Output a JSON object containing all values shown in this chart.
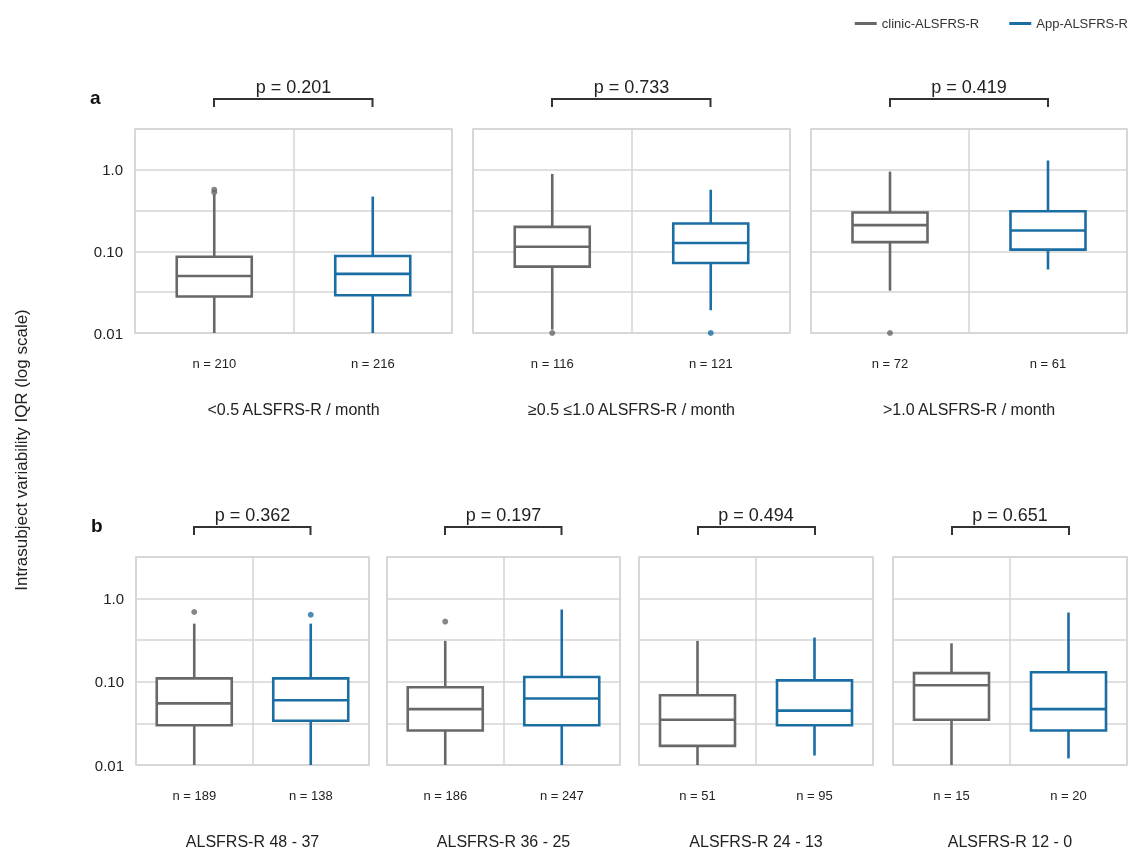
{
  "chart_data": [
    {
      "type": "box",
      "xlabel": "<0.5 ALSFRS-R / month",
      "ylabel": "Intrasubject variability IQR (log scale)",
      "categories": [
        "n = 210",
        "n = 216"
      ],
      "series": [
        {
          "color": "#686868",
          "boxes": [
            {
              "low": 0.01,
              "q1": 0.028,
              "median": 0.05,
              "q3": 0.086,
              "high": 0.5,
              "outliers": [
                0.53,
                0.57
              ]
            },
            null
          ]
        },
        {
          "color": "#1a6ea3",
          "boxes": [
            null,
            {
              "low": 0.01,
              "q1": 0.029,
              "median": 0.053,
              "q3": 0.088,
              "high": 0.47
            }
          ]
        }
      ],
      "ylim": [
        0.01,
        3.162
      ],
      "yticks": [
        {
          "value": 0.01,
          "label": "0.01"
        },
        {
          "value": 0.03162,
          "label": null
        },
        {
          "value": 0.1,
          "label": "0.10"
        },
        {
          "value": 0.3162,
          "label": null
        },
        {
          "value": 1,
          "label": "1.0"
        },
        {
          "value": 3.162,
          "label": null
        }
      ],
      "log": true,
      "grid": true,
      "annotations": [
        "p = 0.201",
        "a"
      ]
    },
    {
      "type": "box",
      "xlabel": "≥0.5 ≤1.0 ALSFRS-R / month",
      "categories": [
        "n = 116",
        "n = 121"
      ],
      "series": [
        {
          "color": "#686868",
          "boxes": [
            {
              "low": 0.011,
              "q1": 0.065,
              "median": 0.114,
              "q3": 0.2,
              "high": 0.89,
              "outliers": [
                0.01
              ]
            },
            null
          ]
        },
        {
          "color": "#1a6ea3",
          "boxes": [
            null,
            {
              "low": 0.019,
              "q1": 0.072,
              "median": 0.127,
              "q3": 0.22,
              "high": 0.57,
              "outliers": [
                0.01
              ]
            }
          ]
        }
      ],
      "ylim": [
        0.01,
        3.162
      ],
      "yticks": [
        0.01,
        0.03162,
        0.1,
        0.3162,
        1,
        3.162
      ],
      "log": true,
      "grid": true,
      "tick_labels": "x",
      "annotations": [
        "p = 0.733"
      ]
    },
    {
      "type": "box",
      "xlabel": ">1.0 ALSFRS-R / month",
      "categories": [
        "n = 72",
        "n = 61"
      ],
      "legend": "top right",
      "series": [
        {
          "name": "clinic-ALSFRS-R",
          "color": "#686868",
          "boxes": [
            {
              "low": 0.033,
              "q1": 0.13,
              "median": 0.21,
              "q3": 0.3,
              "high": 0.95,
              "outliers": [
                0.01
              ]
            },
            null
          ]
        },
        {
          "name": "App-ALSFRS-R",
          "color": "#1a6ea3",
          "boxes": [
            null,
            {
              "low": 0.06,
              "q1": 0.105,
              "median": 0.18,
              "q3": 0.31,
              "high": 1.3
            }
          ]
        }
      ],
      "ylim": [
        0.01,
        3.162
      ],
      "yticks": [
        0.01,
        0.03162,
        0.1,
        0.3162,
        1,
        3.162
      ],
      "log": true,
      "grid": true,
      "tick_labels": "x",
      "annotations": [
        "p = 0.419"
      ]
    },
    {
      "type": "box",
      "xlabel": "ALSFRS-R 48 - 37",
      "categories": [
        "n = 189",
        "n = 138"
      ],
      "series": [
        {
          "color": "#686868",
          "boxes": [
            {
              "low": 0.01,
              "q1": 0.03,
              "median": 0.055,
              "q3": 0.11,
              "high": 0.5,
              "outliers": [
                0.69
              ]
            },
            null
          ]
        },
        {
          "color": "#1a6ea3",
          "boxes": [
            null,
            {
              "low": 0.01,
              "q1": 0.034,
              "median": 0.06,
              "q3": 0.11,
              "high": 0.5,
              "outliers": [
                0.64
              ]
            }
          ]
        }
      ],
      "ylim": [
        0.01,
        3.162
      ],
      "yticks": [
        {
          "value": 0.01,
          "label": "0.01"
        },
        {
          "value": 0.03162,
          "label": null
        },
        {
          "value": 0.1,
          "label": "0.10"
        },
        {
          "value": 0.3162,
          "label": null
        },
        {
          "value": 1,
          "label": "1.0"
        },
        {
          "value": 3.162,
          "label": null
        }
      ],
      "log": true,
      "grid": true,
      "annotations": [
        "p = 0.362",
        "b"
      ]
    },
    {
      "type": "box",
      "xlabel": "ALSFRS-R 36 - 25",
      "categories": [
        "n = 186",
        "n = 247"
      ],
      "series": [
        {
          "color": "#686868",
          "boxes": [
            {
              "low": 0.01,
              "q1": 0.026,
              "median": 0.047,
              "q3": 0.086,
              "high": 0.31,
              "outliers": [
                0.53
              ]
            },
            null
          ]
        },
        {
          "color": "#1a6ea3",
          "boxes": [
            null,
            {
              "low": 0.01,
              "q1": 0.03,
              "median": 0.063,
              "q3": 0.114,
              "high": 0.74
            }
          ]
        }
      ],
      "ylim": [
        0.01,
        3.162
      ],
      "yticks": [
        0.01,
        0.03162,
        0.1,
        0.3162,
        1,
        3.162
      ],
      "log": true,
      "grid": true,
      "tick_labels": "x",
      "annotations": [
        "p = 0.197"
      ]
    },
    {
      "type": "box",
      "xlabel": "ALSFRS-R 24 - 13",
      "categories": [
        "n = 51",
        "n = 95"
      ],
      "series": [
        {
          "color": "#686868",
          "boxes": [
            {
              "low": 0.01,
              "q1": 0.017,
              "median": 0.035,
              "q3": 0.069,
              "high": 0.31
            },
            null
          ]
        },
        {
          "color": "#1a6ea3",
          "boxes": [
            null,
            {
              "low": 0.013,
              "q1": 0.03,
              "median": 0.045,
              "q3": 0.104,
              "high": 0.34
            }
          ]
        }
      ],
      "ylim": [
        0.01,
        3.162
      ],
      "yticks": [
        0.01,
        0.03162,
        0.1,
        0.3162,
        1,
        3.162
      ],
      "log": true,
      "grid": true,
      "tick_labels": "x",
      "annotations": [
        "p = 0.494"
      ]
    },
    {
      "type": "box",
      "xlabel": "ALSFRS-R 12 - 0",
      "categories": [
        "n = 15",
        "n = 20"
      ],
      "series": [
        {
          "color": "#686868",
          "boxes": [
            {
              "low": 0.01,
              "q1": 0.035,
              "median": 0.091,
              "q3": 0.127,
              "high": 0.29
            },
            null
          ]
        },
        {
          "color": "#1a6ea3",
          "boxes": [
            null,
            {
              "low": 0.012,
              "q1": 0.026,
              "median": 0.047,
              "q3": 0.13,
              "high": 0.68
            }
          ]
        }
      ],
      "ylim": [
        0.01,
        3.162
      ],
      "yticks": [
        0.01,
        0.03162,
        0.1,
        0.3162,
        1,
        3.162
      ],
      "log": true,
      "grid": true,
      "tick_labels": "x",
      "annotations": [
        "p = 0.651"
      ]
    }
  ]
}
